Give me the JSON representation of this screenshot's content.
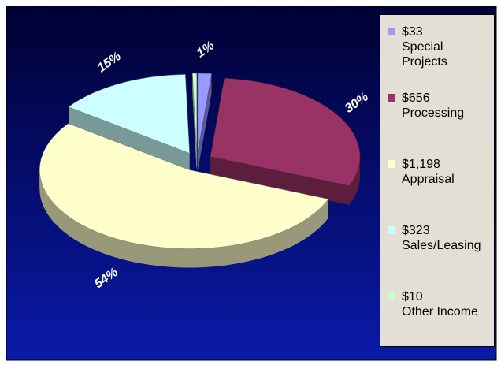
{
  "chart_data": {
    "type": "pie3d",
    "categories": [
      "Special Projects",
      "Processing",
      "Appraisal",
      "Sales/Leasing",
      "Other Income"
    ],
    "values": [
      33,
      656,
      1198,
      323,
      10
    ],
    "value_labels": [
      "$33",
      "$656",
      "$1,198",
      "$323",
      "$10"
    ],
    "percent_labels": [
      "1%",
      "30%",
      "54%",
      "15%",
      null
    ],
    "colors": [
      "#9999ff",
      "#993366",
      "#ffffcc",
      "#ccffff",
      "#ccffcc"
    ],
    "legend": "right"
  }
}
